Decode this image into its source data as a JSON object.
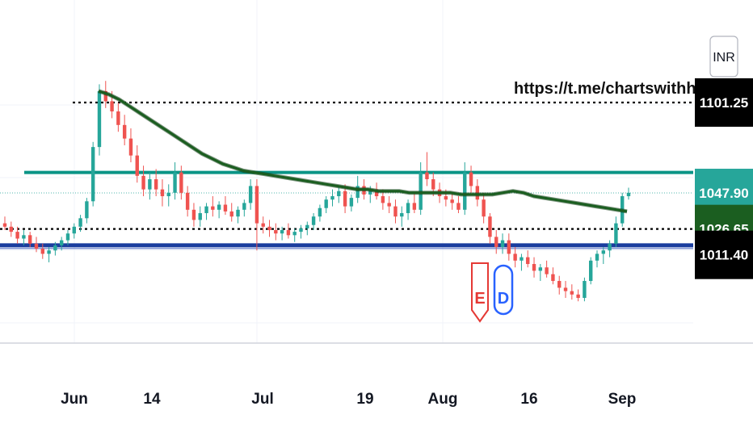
{
  "currency_button": {
    "label": "INR"
  },
  "chart_data": {
    "type": "candlestick",
    "x_tick_labels": [
      "Jun",
      "14",
      "Jul",
      "19",
      "Aug",
      "16",
      "Sep"
    ],
    "price_labels": [
      {
        "text": "1101.25",
        "value": 1101.25,
        "color": "#000000",
        "text_color": "#ffffff"
      },
      {
        "text": "1047.90",
        "value": 1047.9,
        "color": "#26a69a",
        "text_color": "#ffffff"
      },
      {
        "text": "1026.65",
        "value": 1026.65,
        "color": "#1b5e20",
        "text_color": "#ffffff"
      },
      {
        "text": "1011.40",
        "value": 1011.4,
        "color": "#000000",
        "text_color": "#ffffff"
      }
    ],
    "horizontal_lines": [
      {
        "name": "dotted-resistance",
        "value": 1101.25,
        "style": "dotted",
        "color": "#000000"
      },
      {
        "name": "teal-resistance",
        "value": 1060,
        "style": "solid",
        "color": "#0a9486"
      },
      {
        "name": "dotted-mid",
        "value": 1026.65,
        "style": "dotted",
        "color": "#000000"
      },
      {
        "name": "blue-support",
        "value": 1017,
        "style": "solid",
        "color": "#1a3d9e"
      }
    ],
    "annotation": "https://t.me/chartswithhvb",
    "event_markers": [
      {
        "label": "E",
        "type": "earnings",
        "color": "#e53935"
      },
      {
        "label": "D",
        "type": "dividend",
        "color": "#2962ff"
      }
    ],
    "colors": {
      "up": "#26a69a",
      "down": "#ef5350",
      "moving_average": "#1b5e20",
      "grid": "#f0f3fa"
    },
    "ohlc_series": [
      [
        1030,
        1034,
        1026,
        1028
      ],
      [
        1028,
        1031,
        1022,
        1025
      ],
      [
        1025,
        1028,
        1018,
        1021
      ],
      [
        1021,
        1026,
        1017,
        1023
      ],
      [
        1023,
        1025,
        1016,
        1018
      ],
      [
        1018,
        1022,
        1013,
        1015
      ],
      [
        1015,
        1018,
        1009,
        1012
      ],
      [
        1012,
        1016,
        1007,
        1014
      ],
      [
        1014,
        1019,
        1011,
        1017
      ],
      [
        1017,
        1022,
        1014,
        1020
      ],
      [
        1020,
        1026,
        1017,
        1024
      ],
      [
        1024,
        1030,
        1021,
        1028
      ],
      [
        1028,
        1035,
        1025,
        1033
      ],
      [
        1033,
        1045,
        1030,
        1043
      ],
      [
        1043,
        1078,
        1040,
        1075
      ],
      [
        1075,
        1112,
        1070,
        1108
      ],
      [
        1108,
        1114,
        1098,
        1102
      ],
      [
        1102,
        1108,
        1092,
        1096
      ],
      [
        1096,
        1101,
        1084,
        1088
      ],
      [
        1088,
        1094,
        1076,
        1080
      ],
      [
        1080,
        1086,
        1066,
        1070
      ],
      [
        1070,
        1076,
        1054,
        1058
      ],
      [
        1058,
        1064,
        1046,
        1050
      ],
      [
        1050,
        1060,
        1044,
        1056
      ],
      [
        1056,
        1062,
        1046,
        1050
      ],
      [
        1050,
        1056,
        1040,
        1046
      ],
      [
        1046,
        1053,
        1040,
        1048
      ],
      [
        1048,
        1066,
        1044,
        1060
      ],
      [
        1060,
        1064,
        1044,
        1048
      ],
      [
        1048,
        1052,
        1034,
        1038
      ],
      [
        1038,
        1042,
        1028,
        1032
      ],
      [
        1032,
        1040,
        1028,
        1036
      ],
      [
        1036,
        1042,
        1032,
        1040
      ],
      [
        1040,
        1046,
        1034,
        1038
      ],
      [
        1038,
        1043,
        1033,
        1041
      ],
      [
        1041,
        1046,
        1035,
        1037
      ],
      [
        1037,
        1042,
        1031,
        1034
      ],
      [
        1034,
        1040,
        1030,
        1038
      ],
      [
        1038,
        1044,
        1034,
        1042
      ],
      [
        1042,
        1056,
        1038,
        1052
      ],
      [
        1052,
        1056,
        1014,
        1030
      ],
      [
        1030,
        1034,
        1024,
        1028
      ],
      [
        1028,
        1032,
        1022,
        1026
      ],
      [
        1026,
        1030,
        1020,
        1024
      ],
      [
        1024,
        1028,
        1020,
        1026
      ],
      [
        1026,
        1030,
        1021,
        1023
      ],
      [
        1023,
        1027,
        1019,
        1025
      ],
      [
        1025,
        1029,
        1021,
        1027
      ],
      [
        1027,
        1031,
        1023,
        1029
      ],
      [
        1029,
        1036,
        1026,
        1034
      ],
      [
        1034,
        1041,
        1031,
        1039
      ],
      [
        1039,
        1046,
        1036,
        1044
      ],
      [
        1044,
        1050,
        1040,
        1046
      ],
      [
        1046,
        1052,
        1042,
        1049
      ],
      [
        1049,
        1053,
        1036,
        1040
      ],
      [
        1040,
        1047,
        1037,
        1045
      ],
      [
        1045,
        1058,
        1042,
        1052
      ],
      [
        1052,
        1056,
        1044,
        1047
      ],
      [
        1047,
        1052,
        1042,
        1050
      ],
      [
        1050,
        1054,
        1044,
        1046
      ],
      [
        1046,
        1050,
        1038,
        1042
      ],
      [
        1042,
        1046,
        1036,
        1040
      ],
      [
        1040,
        1044,
        1030,
        1034
      ],
      [
        1034,
        1040,
        1028,
        1036
      ],
      [
        1036,
        1044,
        1032,
        1042
      ],
      [
        1042,
        1048,
        1036,
        1038
      ],
      [
        1038,
        1066,
        1035,
        1060
      ],
      [
        1060,
        1072,
        1052,
        1056
      ],
      [
        1056,
        1060,
        1046,
        1050
      ],
      [
        1050,
        1054,
        1042,
        1046
      ],
      [
        1046,
        1050,
        1040,
        1044
      ],
      [
        1044,
        1048,
        1038,
        1042
      ],
      [
        1042,
        1046,
        1036,
        1038
      ],
      [
        1038,
        1066,
        1035,
        1060
      ],
      [
        1060,
        1064,
        1048,
        1052
      ],
      [
        1052,
        1056,
        1040,
        1044
      ],
      [
        1044,
        1048,
        1030,
        1034
      ],
      [
        1034,
        1036,
        1018,
        1022
      ],
      [
        1022,
        1026,
        1012,
        1016
      ],
      [
        1016,
        1024,
        1012,
        1020
      ],
      [
        1020,
        1024,
        1008,
        1012
      ],
      [
        1012,
        1016,
        1004,
        1008
      ],
      [
        1008,
        1012,
        1002,
        1010
      ],
      [
        1010,
        1014,
        1004,
        1006
      ],
      [
        1006,
        1010,
        998,
        1002
      ],
      [
        1002,
        1006,
        996,
        1004
      ],
      [
        1004,
        1008,
        998,
        1000
      ],
      [
        1000,
        1004,
        994,
        996
      ],
      [
        996,
        999,
        988,
        992
      ],
      [
        992,
        996,
        986,
        990
      ],
      [
        990,
        994,
        985,
        988
      ],
      [
        988,
        991,
        984,
        986
      ],
      [
        986,
        998,
        984,
        996
      ],
      [
        996,
        1010,
        994,
        1008
      ],
      [
        1008,
        1014,
        1004,
        1012
      ],
      [
        1012,
        1016,
        1006,
        1014
      ],
      [
        1014,
        1020,
        1010,
        1018
      ],
      [
        1018,
        1034,
        1016,
        1030
      ],
      [
        1030,
        1048,
        1028,
        1046
      ],
      [
        1046,
        1051,
        1044,
        1048
      ]
    ],
    "moving_average_values": [
      1108,
      1106,
      1103,
      1099,
      1095,
      1091,
      1087,
      1083,
      1079,
      1075,
      1071,
      1068,
      1065,
      1063,
      1061,
      1060,
      1059,
      1058,
      1057,
      1056,
      1055,
      1054,
      1053,
      1052,
      1051,
      1050,
      1050,
      1049,
      1049,
      1049,
      1048,
      1048,
      1048,
      1048,
      1048,
      1047,
      1047,
      1047,
      1047,
      1048,
      1049,
      1048,
      1046,
      1045,
      1044,
      1043,
      1042,
      1041,
      1040,
      1039,
      1038,
      1037
    ]
  }
}
